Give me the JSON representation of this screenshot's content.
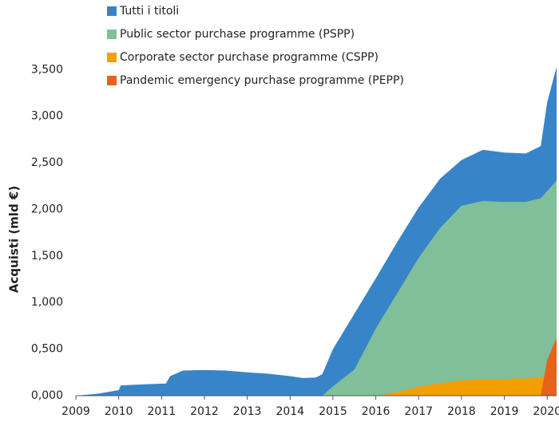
{
  "chart_data": {
    "type": "area",
    "y_label": "Acquisti (mld €)",
    "xlim": [
      2009,
      2020.22
    ],
    "xticks": [
      2009,
      2010,
      2011,
      2012,
      2013,
      2014,
      2015,
      2016,
      2017,
      2018,
      2019,
      2020
    ],
    "ylim": [
      0,
      3700
    ],
    "yticks": [
      {
        "value": 0,
        "label": "0,000"
      },
      {
        "value": 500,
        "label": "0,500"
      },
      {
        "value": 1000,
        "label": "1,000"
      },
      {
        "value": 1500,
        "label": "1,500"
      },
      {
        "value": 2000,
        "label": "2,000"
      },
      {
        "value": 2500,
        "label": "2,500"
      },
      {
        "value": 3000,
        "label": "3,000"
      },
      {
        "value": 3500,
        "label": "3,500"
      }
    ],
    "series": [
      {
        "name": "Tutti i titoli",
        "color": "#3784c9",
        "x": [
          2009,
          2009.5,
          2010,
          2010.05,
          2010.5,
          2011,
          2011.1,
          2011.2,
          2011.5,
          2012,
          2012.5,
          2013,
          2013.5,
          2014,
          2014.3,
          2014.6,
          2014.75,
          2015,
          2015.5,
          2016,
          2016.5,
          2017,
          2017.5,
          2018,
          2018.5,
          2019,
          2019.5,
          2019.85,
          2020,
          2020.22
        ],
        "values": [
          0,
          20,
          60,
          110,
          120,
          130,
          130,
          210,
          270,
          275,
          270,
          250,
          235,
          210,
          190,
          195,
          230,
          500,
          880,
          1260,
          1650,
          2020,
          2330,
          2530,
          2640,
          2610,
          2600,
          2680,
          3150,
          3530
        ]
      },
      {
        "name": "Public sector purchase programme (PSPP)",
        "color": "#80bf99",
        "x": [
          2014.75,
          2015,
          2015.5,
          2016,
          2016.5,
          2017,
          2017.5,
          2018,
          2018.5,
          2019,
          2019.5,
          2019.85,
          2020.22
        ],
        "values": [
          0,
          100,
          280,
          720,
          1100,
          1480,
          1800,
          2040,
          2090,
          2080,
          2080,
          2120,
          2310
        ]
      },
      {
        "name": "Corporate sector purchase programme (CSPP)",
        "color": "#f59e00",
        "x": [
          2016.05,
          2016.5,
          2017,
          2017.5,
          2018,
          2018.5,
          2019,
          2019.5,
          2019.85,
          2020.22
        ],
        "values": [
          0,
          40,
          95,
          135,
          165,
          175,
          180,
          185,
          200,
          210
        ]
      },
      {
        "name": "Pandemic emergency purchase programme (PEPP)",
        "color": "#e8601c",
        "x": [
          2019.85,
          2020,
          2020.1,
          2020.22
        ],
        "values": [
          0,
          380,
          490,
          620
        ]
      }
    ]
  }
}
